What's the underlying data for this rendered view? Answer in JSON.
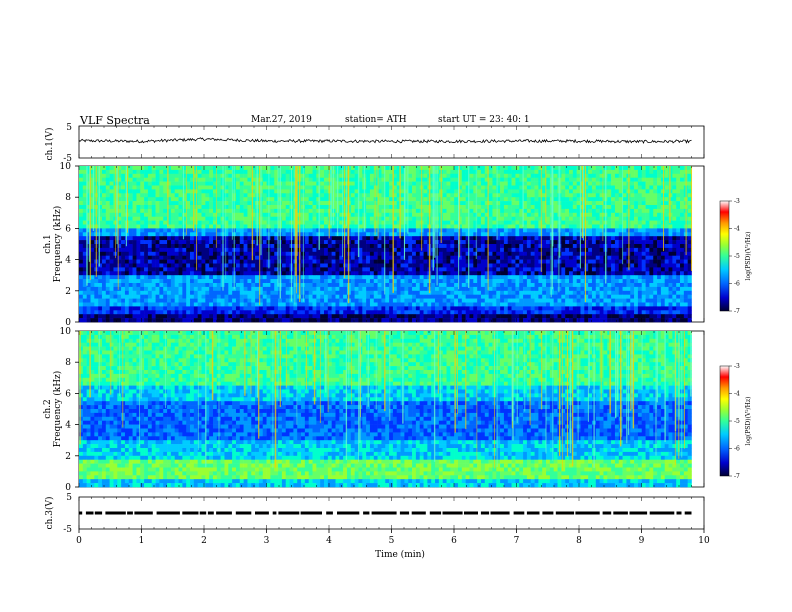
{
  "header": {
    "title": "VLF  Spectra",
    "date": "Mar.27, 2019",
    "station": "station= ATH",
    "start": "start  UT  =    23: 40: 1"
  },
  "colorbar": {
    "label": "log(PSD)(V²/Hz)",
    "ticks": [
      "-3",
      "-4",
      "-5",
      "-6",
      "-7"
    ],
    "colors": [
      "#000033",
      "#0000cc",
      "#0066ff",
      "#00ccff",
      "#33ff99",
      "#99ff33",
      "#ffff00",
      "#ff9900",
      "#ff0000",
      "#ffffff"
    ]
  },
  "chart_data": [
    {
      "type": "line",
      "ylabel": "ch.1(V)",
      "ylim": [
        -5,
        5
      ],
      "yticks": [
        "5",
        "-5"
      ],
      "x": [
        0,
        1,
        2,
        3,
        4,
        5,
        6,
        7,
        8,
        9,
        9.8
      ],
      "y": [
        0.4,
        0.2,
        0.9,
        0.3,
        0.3,
        0.2,
        0.2,
        0.3,
        0.3,
        0.1,
        0.2
      ],
      "xlim": [
        0,
        10
      ],
      "grid": false
    },
    {
      "type": "heatmap",
      "ylabel": "ch.1\nFrequency (kHz)",
      "ylim": [
        0,
        10
      ],
      "yticks": [
        "0",
        "2",
        "4",
        "6",
        "8",
        "10"
      ],
      "xlim": [
        0,
        10
      ],
      "x_extent": [
        0,
        9.8
      ],
      "log_psd_range": [
        -7,
        -3
      ]
    },
    {
      "type": "heatmap",
      "ylabel": "ch.2\nFrequency (kHz)",
      "ylim": [
        0,
        10
      ],
      "yticks": [
        "0",
        "2",
        "4",
        "6",
        "8",
        "10"
      ],
      "xlim": [
        0,
        10
      ],
      "x_extent": [
        0,
        9.8
      ],
      "log_psd_range": [
        -7,
        -3
      ]
    },
    {
      "type": "line",
      "ylabel": "ch.3(V)",
      "ylim": [
        -5,
        5
      ],
      "yticks": [
        "5",
        "-5"
      ],
      "xlim": [
        0,
        10
      ],
      "x": [
        0,
        9.8
      ],
      "y": [
        0,
        0
      ],
      "xlabel": "Time  (min)",
      "xticks": [
        "0",
        "1",
        "2",
        "3",
        "4",
        "5",
        "6",
        "7",
        "8",
        "9",
        "10"
      ]
    }
  ]
}
